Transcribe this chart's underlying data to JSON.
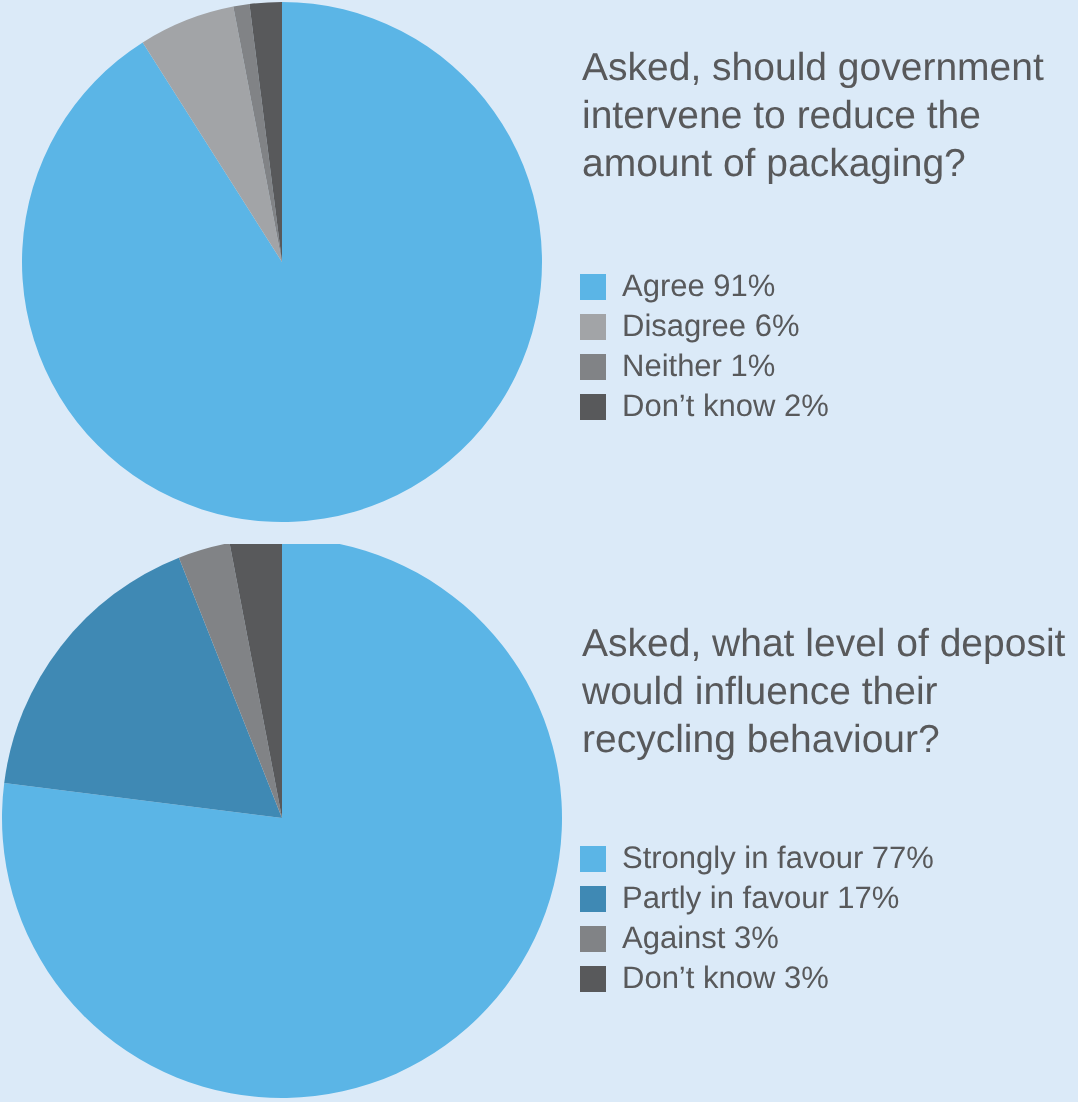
{
  "chart_data": [
    {
      "type": "pie",
      "title": "Asked, should government intervene to reduce the amount of packaging?",
      "categories": [
        "Agree 91%",
        "Disagree 6%",
        "Neither 1%",
        "Don’t know 2%"
      ],
      "values": [
        91,
        6,
        1,
        2
      ],
      "colors": [
        "#5bb5e6",
        "#a2a4a7",
        "#818386",
        "#58595b"
      ],
      "legend": "right"
    },
    {
      "type": "pie",
      "title": "Asked, what level of deposit would influence their recycling behaviour?",
      "categories": [
        "Strongly in favour 77%",
        "Partly in favour 17%",
        "Against 3%",
        "Don’t know 3%"
      ],
      "values": [
        77,
        17,
        3,
        3
      ],
      "colors": [
        "#5bb5e6",
        "#3f89b4",
        "#818386",
        "#58595b"
      ],
      "legend": "right"
    }
  ]
}
